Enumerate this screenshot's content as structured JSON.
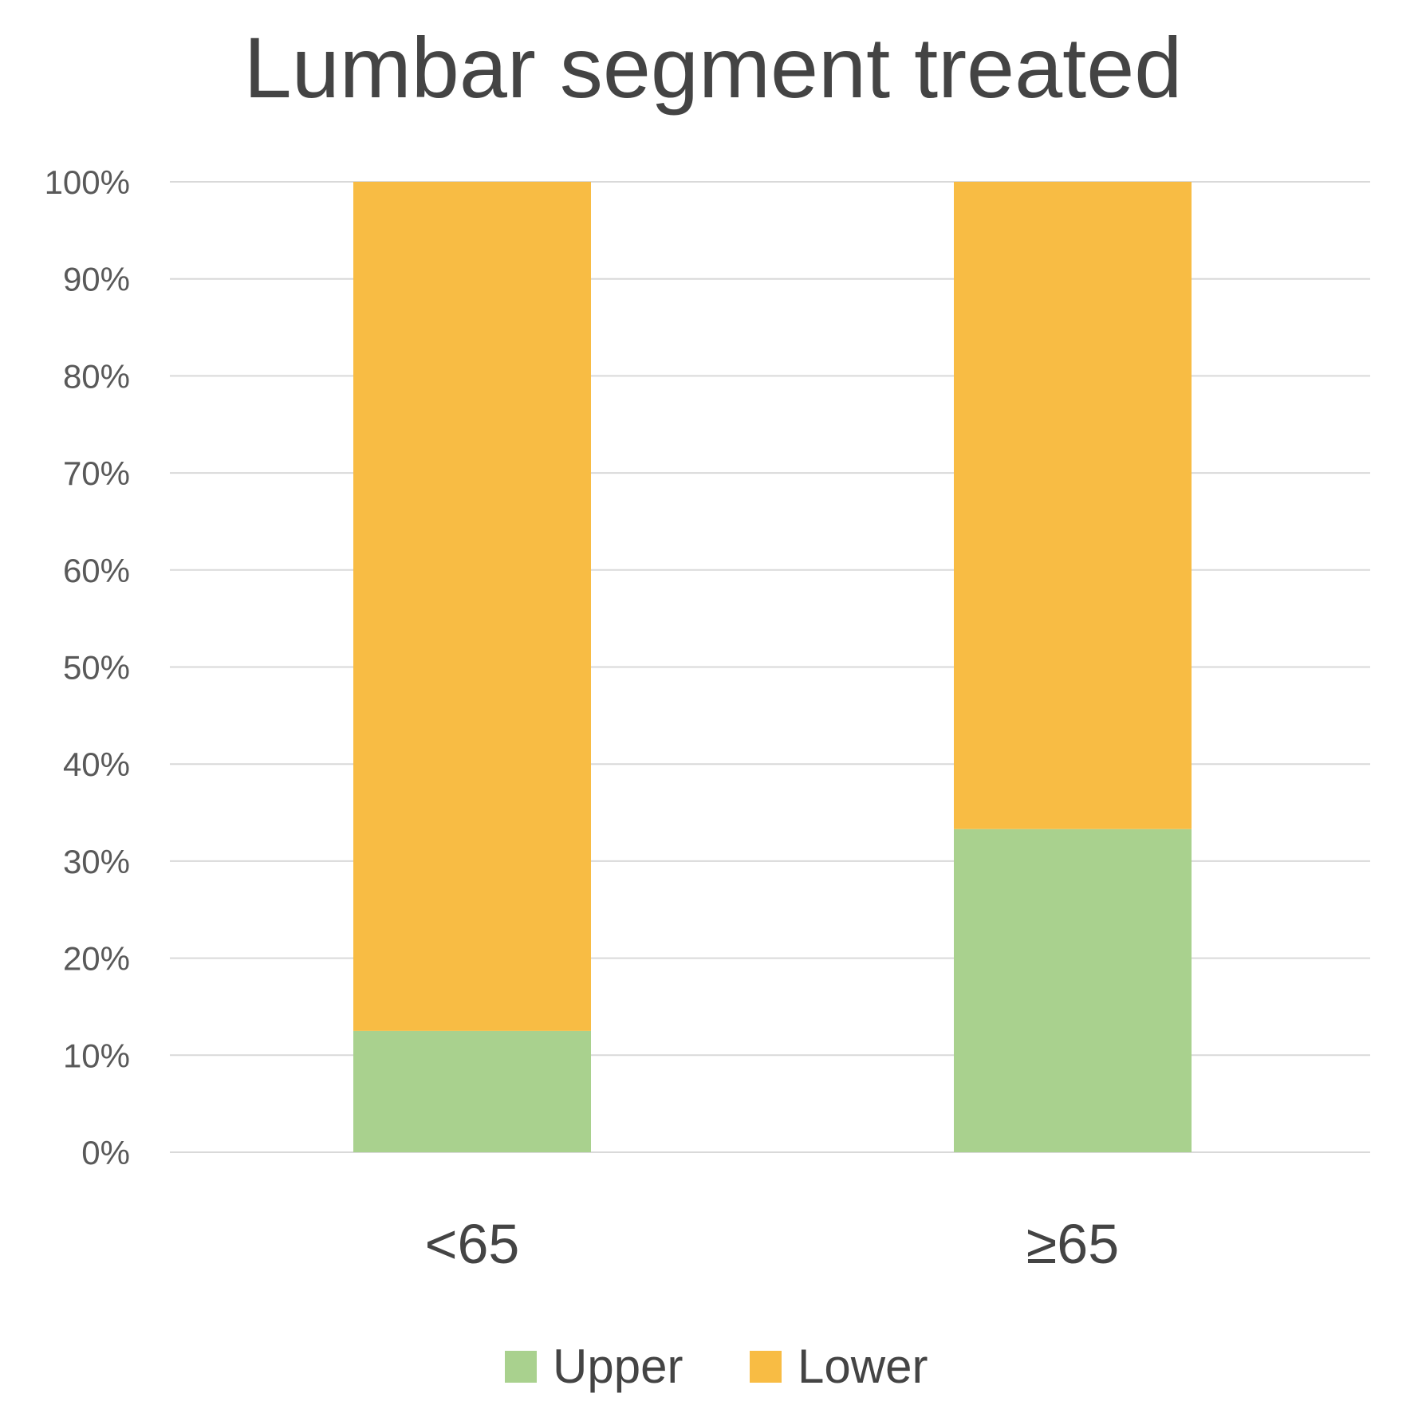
{
  "chart_data": {
    "type": "bar",
    "stacked": true,
    "title": "Lumbar segment treated",
    "categories": [
      "<65",
      "≥65"
    ],
    "series": [
      {
        "name": "Upper",
        "values": [
          12.5,
          33.3
        ],
        "color": "#A9D18E"
      },
      {
        "name": "Lower",
        "values": [
          87.5,
          66.7
        ],
        "color": "#F8BC44"
      }
    ],
    "ylim": [
      0,
      100
    ],
    "yticks": [
      "0%",
      "10%",
      "20%",
      "30%",
      "40%",
      "50%",
      "60%",
      "70%",
      "80%",
      "90%",
      "100%"
    ],
    "grid": true,
    "gridline_color": "#D9D9D9",
    "legend_position": "bottom"
  }
}
